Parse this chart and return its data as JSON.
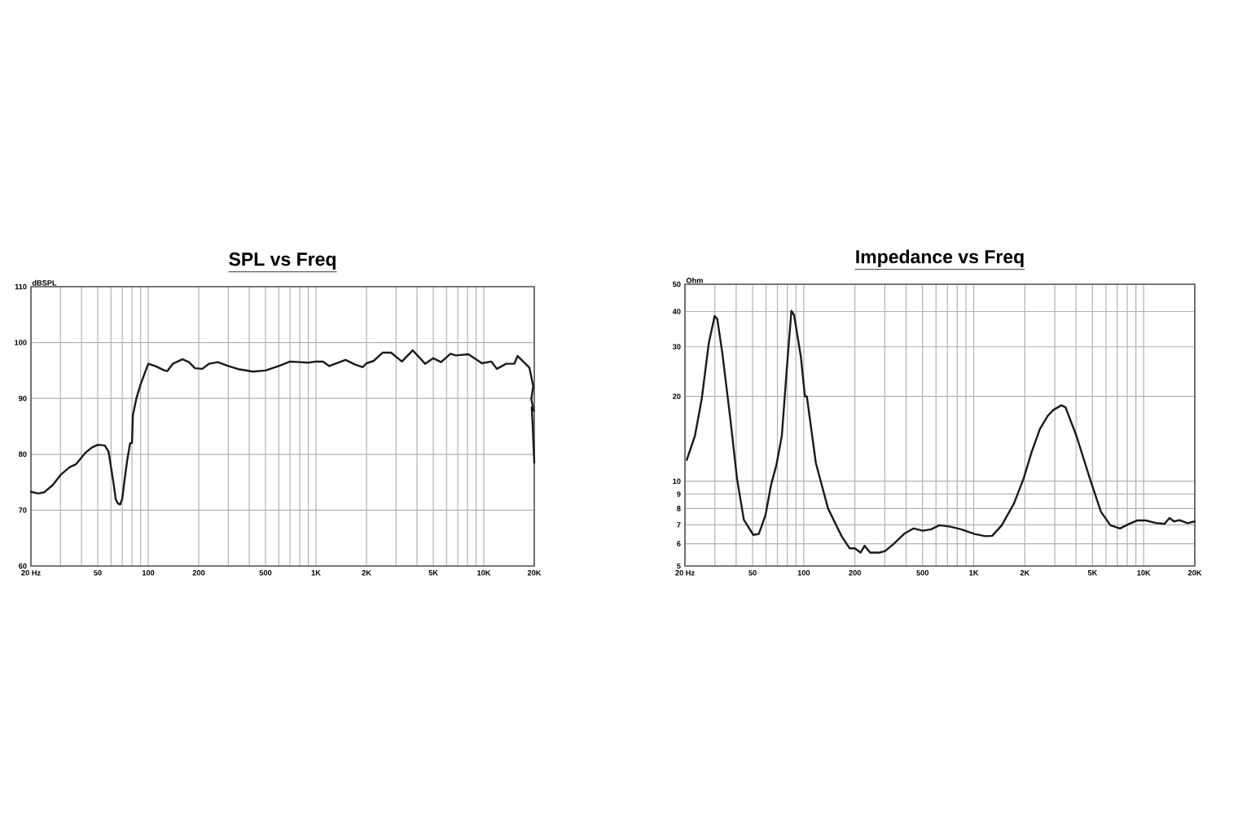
{
  "chart_data": [
    {
      "type": "line",
      "title": "SPL vs Freq",
      "ylabel": "dBSPL",
      "color": "#1a1a1a",
      "log": "x",
      "grid": true,
      "xlim": [
        20,
        20000
      ],
      "ylim": [
        60,
        110
      ],
      "xticks": [
        {
          "value": 20,
          "label": "20 Hz"
        },
        {
          "value": 30,
          "label": null
        },
        {
          "value": 40,
          "label": null
        },
        {
          "value": 50,
          "label": "50"
        },
        {
          "value": 60,
          "label": null
        },
        {
          "value": 70,
          "label": null
        },
        {
          "value": 80,
          "label": null
        },
        {
          "value": 90,
          "label": null
        },
        {
          "value": 100,
          "label": "100"
        },
        {
          "value": 200,
          "label": "200"
        },
        {
          "value": 300,
          "label": null
        },
        {
          "value": 400,
          "label": null
        },
        {
          "value": 500,
          "label": "500"
        },
        {
          "value": 600,
          "label": null
        },
        {
          "value": 700,
          "label": null
        },
        {
          "value": 800,
          "label": null
        },
        {
          "value": 900,
          "label": null
        },
        {
          "value": 1000,
          "label": "1K"
        },
        {
          "value": 2000,
          "label": "2K"
        },
        {
          "value": 3000,
          "label": null
        },
        {
          "value": 4000,
          "label": null
        },
        {
          "value": 5000,
          "label": "5K"
        },
        {
          "value": 6000,
          "label": null
        },
        {
          "value": 7000,
          "label": null
        },
        {
          "value": 8000,
          "label": null
        },
        {
          "value": 9000,
          "label": null
        },
        {
          "value": 10000,
          "label": "10K"
        },
        {
          "value": 20000,
          "label": "20K"
        }
      ],
      "yticks": [
        60,
        70,
        80,
        90,
        100,
        110
      ],
      "x": [
        20,
        22,
        24,
        27,
        30,
        34,
        37,
        42,
        46,
        50,
        55,
        58,
        62,
        64,
        66,
        68,
        70,
        72,
        75,
        78,
        80,
        81,
        85,
        90,
        100,
        110,
        125,
        130,
        140,
        160,
        175,
        190,
        210,
        230,
        260,
        300,
        350,
        420,
        500,
        600,
        700,
        800,
        900,
        1000,
        1100,
        1200,
        1500,
        1700,
        1900,
        2000,
        2200,
        2500,
        2800,
        3250,
        3770,
        4470,
        5000,
        5570,
        6330,
        6800,
        8100,
        9750,
        11100,
        11960,
        13600,
        15200,
        15900,
        18700,
        19700,
        19200,
        19800,
        19300,
        19500,
        20000
      ],
      "values": [
        73.3,
        73,
        73.2,
        74.5,
        76.3,
        77.7,
        78.2,
        80.2,
        81.2,
        81.7,
        81.6,
        80.5,
        75,
        72,
        71.2,
        71,
        72,
        75,
        79,
        82,
        82,
        87,
        90,
        92.5,
        96.2,
        95.8,
        95,
        94.9,
        96.2,
        97,
        96.5,
        95.4,
        95.3,
        96.2,
        96.5,
        95.8,
        95.2,
        94.8,
        95,
        95.8,
        96.6,
        96.5,
        96.4,
        96.6,
        96.6,
        95.8,
        96.9,
        96.1,
        95.6,
        96.3,
        96.7,
        98.2,
        98.2,
        96.6,
        98.6,
        96.2,
        97.2,
        96.5,
        98,
        97.7,
        97.9,
        96.3,
        96.6,
        95.3,
        96.2,
        96.2,
        97.6,
        95.5,
        92.2,
        89.9,
        87.8,
        88.4,
        86,
        78.5
      ]
    },
    {
      "type": "line",
      "title": "Impedance vs Freq",
      "ylabel": "Ohm",
      "color": "#1a1a1a",
      "log": "xy",
      "grid": true,
      "xlim": [
        20,
        20000
      ],
      "ylim": [
        5,
        50
      ],
      "xticks": [
        {
          "value": 20,
          "label": "20 Hz"
        },
        {
          "value": 30,
          "label": null
        },
        {
          "value": 40,
          "label": null
        },
        {
          "value": 50,
          "label": "50"
        },
        {
          "value": 60,
          "label": null
        },
        {
          "value": 70,
          "label": null
        },
        {
          "value": 80,
          "label": null
        },
        {
          "value": 90,
          "label": null
        },
        {
          "value": 100,
          "label": "100"
        },
        {
          "value": 200,
          "label": "200"
        },
        {
          "value": 300,
          "label": null
        },
        {
          "value": 400,
          "label": null
        },
        {
          "value": 500,
          "label": "500"
        },
        {
          "value": 600,
          "label": null
        },
        {
          "value": 700,
          "label": null
        },
        {
          "value": 800,
          "label": null
        },
        {
          "value": 900,
          "label": null
        },
        {
          "value": 1000,
          "label": "1K"
        },
        {
          "value": 2000,
          "label": "2K"
        },
        {
          "value": 3000,
          "label": null
        },
        {
          "value": 4000,
          "label": null
        },
        {
          "value": 5000,
          "label": "5K"
        },
        {
          "value": 6000,
          "label": null
        },
        {
          "value": 7000,
          "label": null
        },
        {
          "value": 8000,
          "label": null
        },
        {
          "value": 9000,
          "label": null
        },
        {
          "value": 10000,
          "label": "10K"
        },
        {
          "value": 20000,
          "label": "20K"
        }
      ],
      "yticks": [
        5,
        6,
        7,
        8,
        9,
        10,
        20,
        30,
        40,
        50
      ],
      "x": [
        20.5,
        22.9,
        25.1,
        27.6,
        29.9,
        31,
        33.1,
        37,
        40.5,
        44.4,
        50.5,
        54.4,
        59.6,
        64.2,
        69,
        74.3,
        80,
        84.6,
        87.7,
        96.2,
        101.6,
        104.3,
        117.8,
        139,
        167,
        186,
        200,
        216,
        228,
        246,
        279,
        301,
        336,
        389,
        443,
        502,
        562,
        628,
        727,
        843,
        1012,
        1173,
        1286,
        1463,
        1726,
        1964,
        2193,
        2450,
        2736,
        2940,
        3283,
        3468,
        4020,
        4830,
        5600,
        6370,
        7250,
        8240,
        9200,
        10280,
        11900,
        13270,
        14190,
        15100,
        16250,
        18160,
        19900
      ],
      "values": [
        11.9,
        14.5,
        19.6,
        30.8,
        38.6,
        37.6,
        28.8,
        16.6,
        10.2,
        7.3,
        6.45,
        6.5,
        7.6,
        9.7,
        11.4,
        14.5,
        26.4,
        40.2,
        38.9,
        27.6,
        20,
        20,
        11.6,
        8,
        6.38,
        5.78,
        5.78,
        5.58,
        5.9,
        5.58,
        5.58,
        5.65,
        5.97,
        6.5,
        6.8,
        6.67,
        6.75,
        6.98,
        6.9,
        6.75,
        6.5,
        6.38,
        6.4,
        6.98,
        8.34,
        10.2,
        12.7,
        15.3,
        17.1,
        17.9,
        18.6,
        18.3,
        14.5,
        10.2,
        7.8,
        6.98,
        6.8,
        7.06,
        7.26,
        7.26,
        7.1,
        7.06,
        7.4,
        7.2,
        7.28,
        7.1,
        7.2
      ]
    }
  ]
}
